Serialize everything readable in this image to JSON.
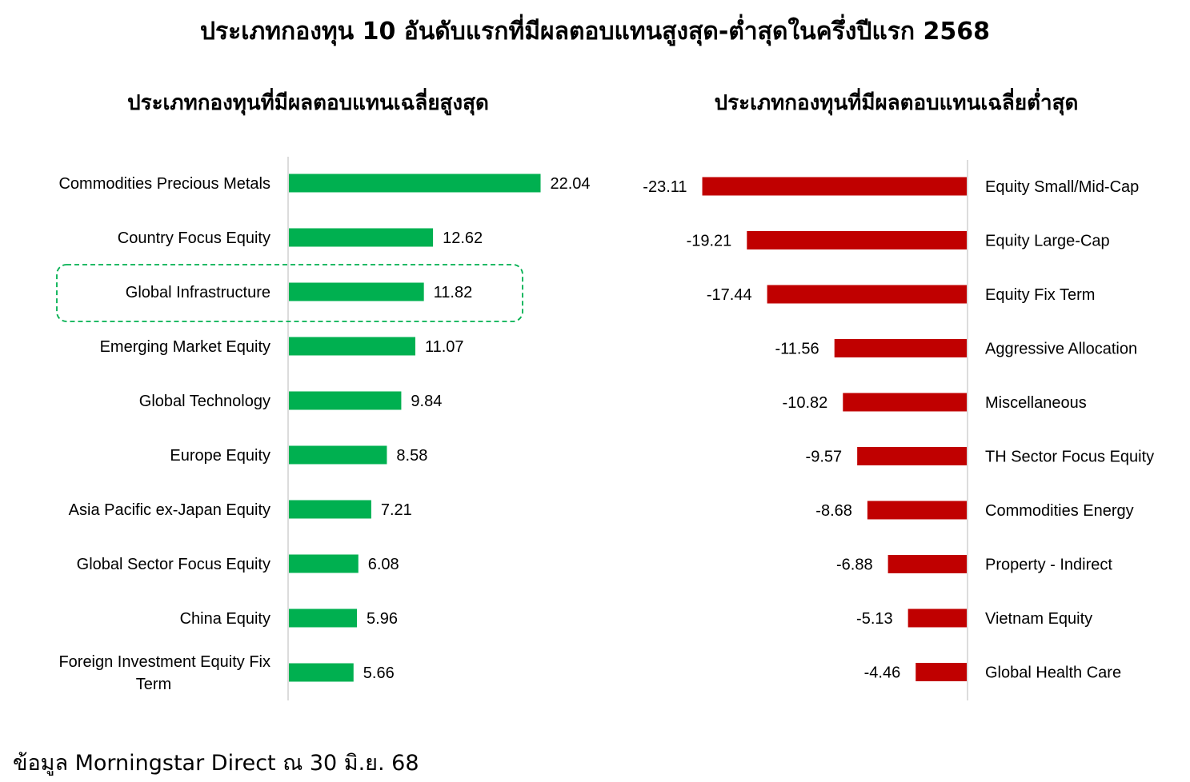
{
  "title": "ประเภทกองทุน 10 อันดับแรกที่มีผลตอบแทนสูงสุด-ต่ำสุดในครึ่งปีแรก 2568",
  "footer": "ข้อมูล Morningstar Direct ณ 30 มิ.ย. 68",
  "colors": {
    "positive": "#00b050",
    "negative": "#c00000",
    "axis": "#d0d0d0",
    "highlight": "#00b050"
  },
  "chart_data": [
    {
      "type": "bar",
      "orientation": "horizontal",
      "title": "ประเภทกองทุนที่มีผลตอบแทนเฉลี่ยสูงสุด",
      "categories": [
        "Commodities Precious Metals",
        "Country Focus Equity",
        "Global Infrastructure",
        "Emerging Market Equity",
        "Global Technology",
        "Europe Equity",
        "Asia Pacific ex-Japan Equity",
        "Global Sector Focus Equity",
        "China Equity",
        "Foreign Investment Equity Fix Term"
      ],
      "category_lines": [
        [
          "Commodities Precious Metals"
        ],
        [
          "Country Focus Equity"
        ],
        [
          "Global Infrastructure"
        ],
        [
          "Emerging Market Equity"
        ],
        [
          "Global Technology"
        ],
        [
          "Europe Equity"
        ],
        [
          "Asia Pacific ex-Japan Equity"
        ],
        [
          "Global Sector Focus Equity"
        ],
        [
          "China Equity"
        ],
        [
          "Foreign Investment Equity Fix",
          "Term"
        ]
      ],
      "values": [
        22.04,
        12.62,
        11.82,
        11.07,
        9.84,
        8.58,
        7.21,
        6.08,
        5.96,
        5.66
      ],
      "labels": [
        "22.04",
        "12.62",
        "11.82",
        "11.07",
        "9.84",
        "8.58",
        "7.21",
        "6.08",
        "5.96",
        "5.66"
      ],
      "highlighted_category": "Global Infrastructure",
      "grid": false
    },
    {
      "type": "bar",
      "orientation": "horizontal",
      "title": "ประเภทกองทุนที่มีผลตอบแทนเฉลี่ยต่ำสุด",
      "categories": [
        "Equity Small/Mid-Cap",
        "Equity Large-Cap",
        "Equity Fix Term",
        "Aggressive Allocation",
        "Miscellaneous",
        "TH Sector Focus Equity",
        "Commodities Energy",
        "Property - Indirect",
        "Vietnam Equity",
        "Global Health Care"
      ],
      "values": [
        -23.11,
        -19.21,
        -17.44,
        -11.56,
        -10.82,
        -9.57,
        -8.68,
        -6.88,
        -5.13,
        -4.46
      ],
      "labels": [
        "-23.11",
        "-19.21",
        "-17.44",
        "-11.56",
        "-10.82",
        "-9.57",
        "-8.68",
        "-6.88",
        "-5.13",
        "-4.46"
      ],
      "grid": false
    }
  ]
}
